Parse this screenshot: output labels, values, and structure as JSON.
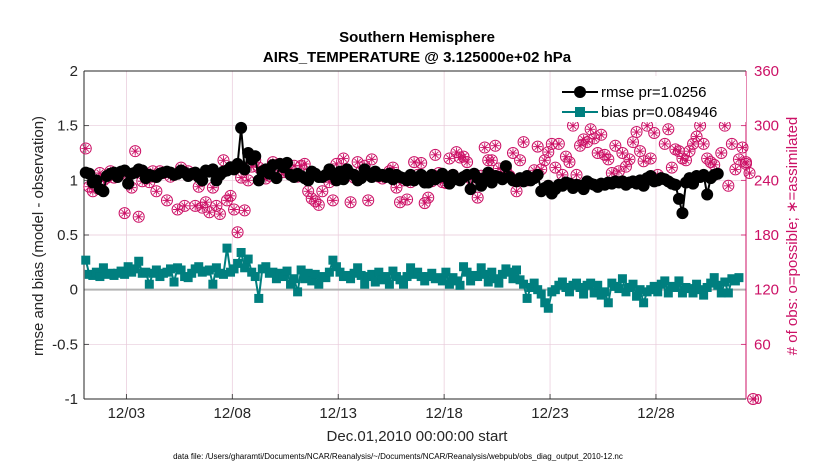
{
  "chart_data": {
    "type": "line",
    "title": "Southern Hemisphere",
    "subtitle": "AIRS_TEMPERATURE @ 3.125000e+02 hPa",
    "xlabel": "Dec.01,2010 00:00:00 start",
    "ylabel_left": "rmse and bias (model - observation)",
    "ylabel_right": "# of obs: o=possible; ∗=assimilated",
    "footnote": "data file: /Users/gharamti/Documents/NCAR/Reanalysis/~/Documents/NCAR/Reanalysis/webpub/obs_diag_output_2010-12.nc",
    "grid": true,
    "legend_position": "top-right",
    "xlim": [
      0,
      31.25
    ],
    "ylim_left": [
      -1,
      2
    ],
    "ylim_right": [
      0,
      360
    ],
    "x_tick_values": [
      2,
      7,
      12,
      17,
      22,
      27
    ],
    "x_tick_labels": [
      "12/03",
      "12/08",
      "12/13",
      "12/18",
      "12/23",
      "12/28"
    ],
    "y_left_ticks": [
      "-1",
      "-0.5",
      "0",
      "0.5",
      "1",
      "1.5",
      "2"
    ],
    "y_right_ticks": [
      "0",
      "60",
      "120",
      "180",
      "240",
      "300",
      "360"
    ],
    "series": [
      {
        "name": "rmse",
        "legend": "rmse pr=1.0256",
        "color": "#000000",
        "values": [
          1.07,
          1.06,
          0.98,
          1.0,
          0.92,
          0.9,
          1.04,
          1.06,
          1.07,
          1.03,
          1.08,
          1.09,
          0.97,
          1.06,
          1.07,
          1.1,
          1.09,
          1.02,
          1.05,
          1.04,
          1.03,
          1.06,
          1.07,
          1.08,
          1.07,
          1.05,
          1.06,
          1.09,
          1.07,
          1.04,
          1.06,
          1.07,
          1.03,
          1.0,
          1.09,
          1.08,
          1.1,
          1.0,
          1.05,
          1.08,
          1.09,
          1.12,
          1.1,
          1.15,
          1.48,
          1.1,
          1.25,
          1.19,
          1.22,
          1.0,
          1.08,
          1.1,
          1.06,
          1.14,
          1.02,
          1.15,
          1.12,
          1.16,
          1.05,
          1.03,
          1.06,
          1.04,
          1.02,
          1.0,
          1.08,
          1.06,
          1.03,
          1.03,
          1.05,
          1.1,
          1.05,
          1.0,
          1.08,
          1.01,
          1.1,
          1.06,
          1.05,
          1.0,
          1.02,
          1.1,
          1.06,
          1.03,
          1.08,
          1.04,
          1.05,
          1.03,
          1.06,
          1.01,
          1.05,
          1.03,
          1.02,
          1.0,
          1.05,
          1.0,
          1.02,
          1.05,
          0.98,
          0.98,
          1.05,
          1.01,
          1.03,
          1.06,
          1.03,
          0.97,
          1.05,
          1.01,
          1.0,
          1.03,
          1.05,
          0.92,
          1.06,
          1.02,
          0.95,
          1.02,
          1.07,
          0.98,
          1.04,
          1.03,
          1.01,
          1.13,
          1.03,
          1.0,
          0.99,
          1.02,
          0.99,
          1.04,
          1.0,
          1.02,
          1.05,
          0.9,
          0.93,
          0.95,
          0.88,
          0.92,
          0.96,
          0.95,
          0.98,
          0.97,
          0.93,
          0.96,
          0.95,
          0.92,
          0.99,
          0.97,
          0.96,
          0.94,
          0.97,
          0.96,
          0.98,
          0.97,
          0.99,
          0.98,
          0.99,
          0.96,
          0.98,
          0.99,
          0.97,
          1.0,
          0.95,
          1.02,
          1.04,
          0.99,
          1.0,
          1.02,
          1.01,
          0.99,
          0.97,
          0.96,
          0.83,
          0.7,
          0.98,
          1.02,
          0.97,
          1.04,
          1.03,
          1.05,
          0.87,
          1.02,
          1.05,
          1.06
        ]
      },
      {
        "name": "bias",
        "legend": "bias pr=0.084946",
        "color": "#007f7f",
        "values": [
          0.27,
          0.14,
          0.13,
          0.16,
          0.12,
          0.2,
          0.14,
          0.15,
          0.13,
          0.15,
          0.17,
          0.14,
          0.21,
          0.16,
          0.19,
          0.26,
          0.15,
          0.16,
          0.05,
          0.15,
          0.18,
          0.12,
          0.15,
          0.16,
          0.19,
          0.07,
          0.2,
          0.18,
          0.12,
          0.11,
          0.15,
          0.19,
          0.21,
          0.16,
          0.17,
          0.18,
          0.05,
          0.2,
          0.15,
          0.14,
          0.38,
          0.16,
          0.19,
          0.24,
          0.34,
          0.2,
          0.28,
          0.16,
          0.12,
          -0.08,
          0.19,
          0.21,
          0.15,
          0.16,
          0.1,
          0.15,
          0.12,
          0.17,
          0.05,
          0.1,
          -0.02,
          0.18,
          0.1,
          0.15,
          0.08,
          0.14,
          0.05,
          0.12,
          0.11,
          0.16,
          0.27,
          0.21,
          0.16,
          0.12,
          0.13,
          0.1,
          0.15,
          0.2,
          0.13,
          0.05,
          0.12,
          0.14,
          0.07,
          0.16,
          0.09,
          0.12,
          0.05,
          0.17,
          0.12,
          0.09,
          0.05,
          0.12,
          0.2,
          0.14,
          0.16,
          0.12,
          0.08,
          0.12,
          0.15,
          0.1,
          0.11,
          0.08,
          0.16,
          0.05,
          0.11,
          0.08,
          0.04,
          0.21,
          0.16,
          0.08,
          0.13,
          0.12,
          0.2,
          0.14,
          0.07,
          0.16,
          0.1,
          0.06,
          0.14,
          0.19,
          0.16,
          0.1,
          0.18,
          0.09,
          0.05,
          -0.08,
          0.02,
          0.06,
          0.0,
          -0.04,
          -0.12,
          -0.17,
          -0.02,
          0.0,
          0.04,
          0.07,
          0.02,
          -0.02,
          0.04,
          0.06,
          0.02,
          -0.04,
          0.04,
          0.06,
          -0.03,
          0.04,
          -0.05,
          -0.02,
          -0.12,
          0.06,
          0.03,
          0.01,
          0.1,
          -0.02,
          0.02,
          0.05,
          -0.06,
          0.0,
          -0.12,
          -0.02,
          0.0,
          0.03,
          -0.02,
          0.05,
          0.08,
          -0.03,
          0.03,
          0.02,
          0.08,
          -0.03,
          0.02,
          0.01,
          -0.03,
          0.05,
          0.0,
          -0.05,
          0.02,
          0.06,
          0.11,
          0.04,
          -0.03,
          0.07,
          -0.03,
          0.1,
          0.08,
          0.11
        ]
      },
      {
        "name": "possible",
        "color": "#cc1166",
        "values": [
          275,
          233,
          228,
          242,
          248,
          240,
          243,
          250,
          243,
          245,
          248,
          204,
          245,
          232,
          272,
          200,
          239,
          245,
          238,
          250,
          228,
          250,
          248,
          218,
          244,
          246,
          208,
          254,
          212,
          250,
          247,
          212,
          233,
          210,
          216,
          205,
          232,
          212,
          203,
          262,
          218,
          223,
          208,
          183,
          243,
          207,
          240,
          255,
          262,
          254,
          250,
          242,
          245,
          260,
          245,
          258,
          249,
          250,
          247,
          256,
          244,
          256,
          258,
          228,
          220,
          217,
          213,
          228,
          244,
          238,
          218,
          258,
          244,
          264,
          249,
          216,
          243,
          260,
          250,
          256,
          218,
          263,
          247,
          244,
          242,
          244,
          250,
          254,
          232,
          216,
          240,
          219,
          238,
          260,
          246,
          259,
          215,
          221,
          239,
          268,
          248,
          238,
          237,
          264,
          246,
          271,
          265,
          266,
          260,
          242,
          246,
          221,
          245,
          276,
          262,
          262,
          278,
          253,
          243,
          252,
          245,
          270,
          228,
          262,
          282,
          240,
          242,
          251,
          277,
          252,
          262,
          271,
          280,
          254,
          280,
          246,
          266,
          260,
          300,
          246,
          278,
          285,
          282,
          296,
          286,
          270,
          290,
          268,
          263,
          248,
          278,
          250,
          270,
          255,
          263,
          282,
          293,
          272,
          261,
          300,
          264,
          292,
          246,
          320,
          280,
          296,
          254,
          274,
          272,
          264,
          262,
          272,
          280,
          288,
          300,
          280,
          264,
          260,
          257,
          260,
          270,
          300,
          234,
          280,
          252,
          263,
          276,
          258,
          248,
          0
        ]
      },
      {
        "name": "assimilated",
        "color": "#cc1166",
        "values": [
          275,
          233,
          228,
          242,
          248,
          240,
          243,
          250,
          243,
          245,
          248,
          204,
          245,
          232,
          272,
          200,
          239,
          245,
          238,
          250,
          228,
          250,
          248,
          218,
          244,
          246,
          208,
          254,
          212,
          250,
          247,
          212,
          233,
          210,
          216,
          205,
          232,
          212,
          203,
          262,
          218,
          223,
          208,
          183,
          243,
          207,
          240,
          255,
          262,
          254,
          250,
          242,
          245,
          260,
          245,
          258,
          249,
          250,
          247,
          256,
          244,
          256,
          258,
          228,
          220,
          217,
          213,
          228,
          244,
          238,
          218,
          258,
          244,
          264,
          249,
          216,
          243,
          260,
          250,
          256,
          218,
          263,
          247,
          244,
          242,
          244,
          250,
          254,
          232,
          216,
          240,
          219,
          238,
          260,
          246,
          259,
          215,
          221,
          239,
          268,
          248,
          238,
          237,
          264,
          246,
          271,
          265,
          266,
          260,
          242,
          246,
          221,
          245,
          276,
          262,
          262,
          278,
          253,
          243,
          252,
          245,
          270,
          228,
          262,
          282,
          240,
          242,
          251,
          277,
          252,
          262,
          271,
          280,
          254,
          280,
          246,
          266,
          260,
          300,
          246,
          278,
          285,
          282,
          296,
          286,
          270,
          290,
          268,
          263,
          248,
          278,
          250,
          270,
          255,
          263,
          282,
          293,
          272,
          261,
          300,
          264,
          292,
          246,
          320,
          280,
          296,
          254,
          274,
          272,
          264,
          262,
          272,
          280,
          288,
          300,
          280,
          264,
          260,
          257,
          260,
          270,
          300,
          234,
          280,
          252,
          263,
          276,
          258,
          248,
          0
        ]
      }
    ]
  }
}
